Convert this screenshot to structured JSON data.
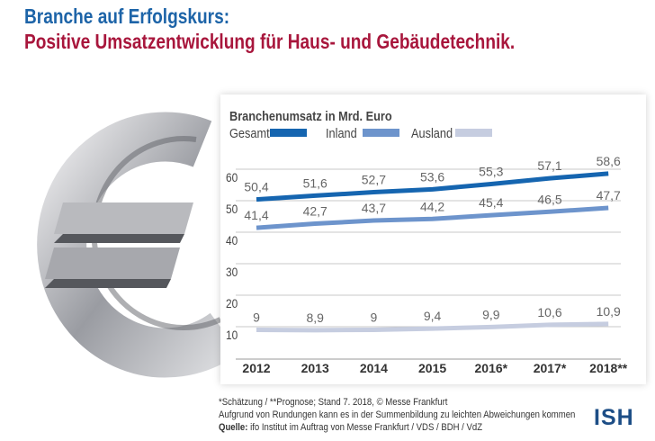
{
  "header": {
    "title_line1": "Branche auf Erfolgskurs:",
    "title_line2": "Positive Umsatzentwicklung für Haus- und Gebäudetechnik."
  },
  "chart_data": {
    "type": "line",
    "title": "Branchenumsatz in Mrd. Euro",
    "categories": [
      "2012",
      "2013",
      "2014",
      "2015",
      "2016*",
      "2017*",
      "2018**"
    ],
    "yticks": [
      10,
      20,
      30,
      40,
      50,
      60
    ],
    "ylim": [
      0,
      60
    ],
    "grid": true,
    "legend_position": "top-left",
    "series": [
      {
        "name": "Gesamt",
        "color": "#1565b0",
        "values": [
          50.4,
          51.6,
          52.7,
          53.6,
          55.3,
          57.1,
          58.6
        ],
        "labels": [
          "50,4",
          "51,6",
          "52,7",
          "53,6",
          "55,3",
          "57,1",
          "58,6"
        ]
      },
      {
        "name": "Inland",
        "color": "#6d94cc",
        "values": [
          41.4,
          42.7,
          43.7,
          44.2,
          45.4,
          46.5,
          47.7
        ],
        "labels": [
          "41,4",
          "42,7",
          "43,7",
          "44,2",
          "45,4",
          "46,5",
          "47,7"
        ]
      },
      {
        "name": "Ausland",
        "color": "#c6cde0",
        "values": [
          9,
          8.9,
          9,
          9.4,
          9.9,
          10.6,
          10.9
        ],
        "labels": [
          "9",
          "8,9",
          "9",
          "9,4",
          "9,9",
          "10,6",
          "10,9"
        ]
      }
    ]
  },
  "footer": {
    "note1": "*Schätzung / **Prognose; Stand 7. 2018, © Messe Frankfurt",
    "note2": "Aufgrund von Rundungen kann es in der Summenbildung zu leichten Abweichungen kommen",
    "source_label": "Quelle:",
    "source_text": " ifo Institut im Auftrag von Messe Frankfurt / VDS / BDH / VdZ",
    "logo": "ISH"
  }
}
